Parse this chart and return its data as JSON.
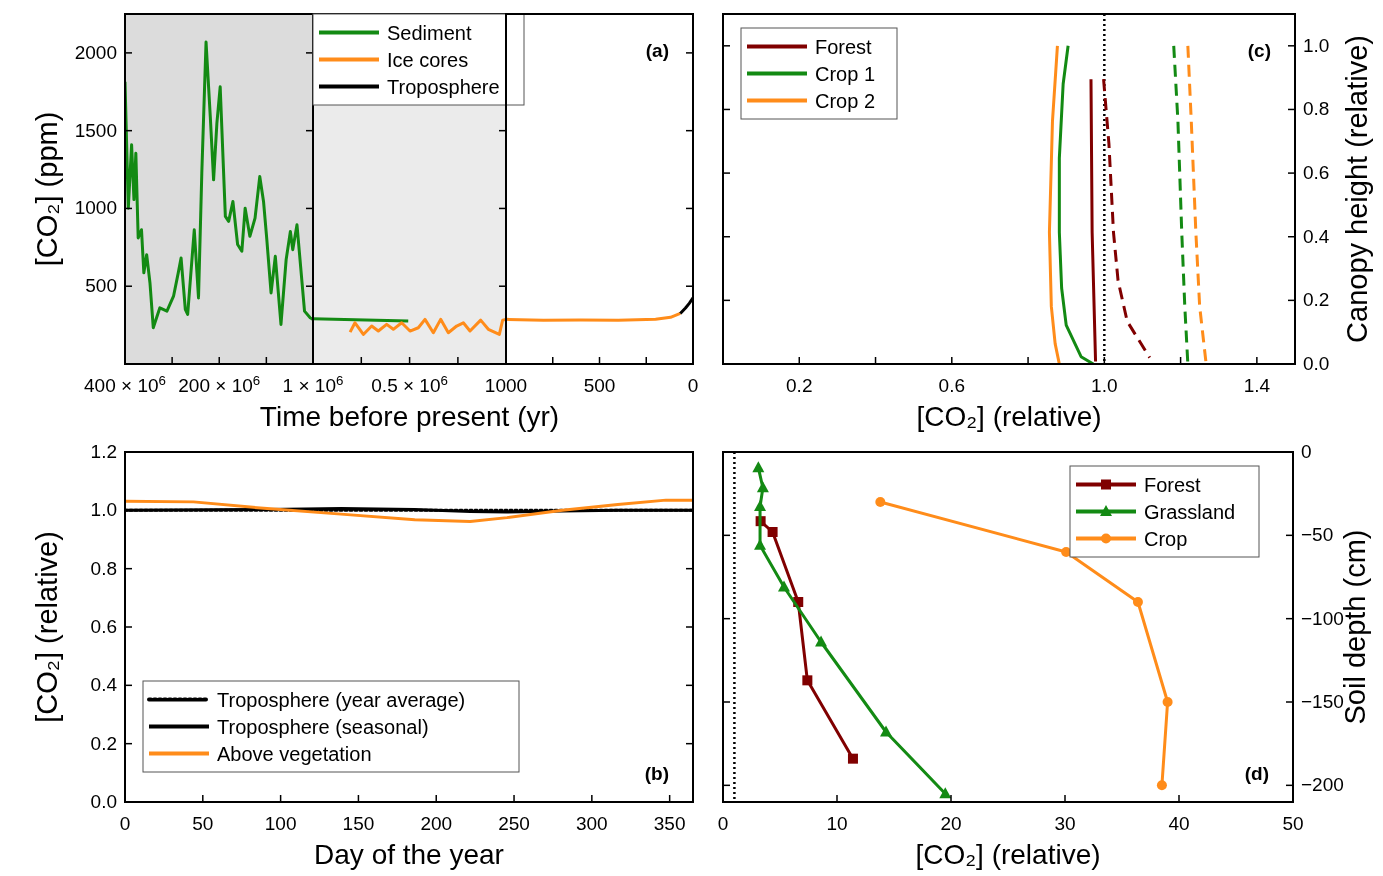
{
  "chart_data": [
    {
      "type": "line",
      "ylabel": "[CO₂] (ppm)",
      "xlim": [
        400000000,
        1000000
      ],
      "ylim": [
        0,
        2250
      ],
      "xticks": [
        {
          "value": 400000000,
          "label": "400 × 10$^{6}$"
        },
        {
          "value": 300000000,
          "label": null
        },
        {
          "value": 200000000,
          "label": "200 × 10$^{6}$"
        },
        {
          "value": 100000000,
          "label": null
        }
      ],
      "yticks": [
        500,
        1000,
        1500,
        2000
      ],
      "bands": [
        {
          "axis": "x",
          "from": 400000000,
          "to": 1000000,
          "color": "#dcdcdc"
        }
      ],
      "series": [
        {
          "name": "Sediment",
          "color": "#138a13",
          "x": [
            400000000,
            393000000,
            386000000,
            381000000,
            377000000,
            372000000,
            365000000,
            360000000,
            354000000,
            347000000,
            340000000,
            326000000,
            311000000,
            297000000,
            287000000,
            281000000,
            272000000,
            267000000,
            253000000,
            244000000,
            237000000,
            228000000,
            219000000,
            212000000,
            205000000,
            198000000,
            187000000,
            180000000,
            171000000,
            161000000,
            152000000,
            145000000,
            135000000,
            124000000,
            114000000,
            106000000,
            99000000,
            90000000,
            81000000,
            69000000,
            58000000,
            49000000,
            44000000,
            35000000,
            19000000,
            7000000,
            1000000
          ],
          "values": [
            1815,
            1002,
            1409,
            1057,
            1355,
            810,
            863,
            586,
            703,
            521,
            233,
            361,
            340,
            436,
            586,
            682,
            351,
            319,
            863,
            425,
            1226,
            2070,
            1590,
            1184,
            1547,
            1782,
            949,
            917,
            1045,
            768,
            725,
            1002,
            821,
            938,
            1205,
            1045,
            799,
            457,
            692,
            254,
            671,
            852,
            735,
            895,
            340,
            297,
            287
          ]
        }
      ]
    },
    {
      "type": "line",
      "xlabel": "Time before present (yr)",
      "xlim": [
        1000000,
        1000
      ],
      "ylim": [
        0,
        2250
      ],
      "tick_labels": "x",
      "legend": "top left",
      "xticks": [
        {
          "value": 1000000,
          "label": "1 × 10$^{6}$"
        },
        {
          "value": 750000,
          "label": null
        },
        {
          "value": 500000,
          "label": "0.5 × 10$^{6}$"
        },
        {
          "value": 250000,
          "label": null
        }
      ],
      "yticks": [
        500,
        1000,
        1500,
        2000
      ],
      "bands": [
        {
          "axis": "x",
          "from": 1000000,
          "to": 1000,
          "color": "#ebebeb"
        }
      ],
      "series": [
        {
          "color": "#138a13",
          "x": [
            1000000,
            507000
          ],
          "values": [
            291,
            276
          ]
        },
        {
          "name": "Ice cores",
          "color": "#ff8c1a",
          "x": [
            808000,
            782600,
            739500,
            696300,
            661800,
            618700,
            584200,
            541000,
            497900,
            454800,
            420300,
            377100,
            339200,
            299500,
            256400,
            221900,
            187300,
            132100,
            92400,
            35500,
            18300,
            1000
          ],
          "values": [
            205,
            265,
            190,
            244,
            212,
            255,
            223,
            265,
            212,
            233,
            287,
            201,
            287,
            201,
            244,
            265,
            212,
            282,
            223,
            190,
            282,
            287
          ]
        }
      ]
    },
    {
      "type": "line",
      "title": "(a)",
      "xlim": [
        1000,
        0
      ],
      "ylim": [
        0,
        2250
      ],
      "tick_labels": "x",
      "xticks": [
        1000,
        {
          "value": 750,
          "label": null
        },
        500,
        {
          "value": 250,
          "label": null
        },
        0
      ],
      "yticks": [
        500,
        1000,
        1500,
        2000
      ],
      "series": [
        {
          "color": "#ff8c1a",
          "x": [
            1000,
            800,
            600,
            400,
            200,
            120,
            68
          ],
          "values": [
            287,
            282,
            283,
            282,
            287,
            300,
            325
          ]
        },
        {
          "name": "Troposphere",
          "color": "#000000",
          "x": [
            68,
            40,
            20,
            0
          ],
          "values": [
            325,
            360,
            390,
            425
          ]
        }
      ]
    },
    {
      "type": "line",
      "title": "(c)",
      "xlabel": "[CO₂] (relative)",
      "y2label": "Canopy height (relative)",
      "legend": "top left",
      "xlim": [
        0,
        1.5
      ],
      "y2lim": [
        0,
        1.1
      ],
      "xticks": [
        0.2,
        {
          "value": 0.4,
          "label": null
        },
        0.6,
        {
          "value": 0.8,
          "label": null
        },
        {
          "value": 1,
          "label": "1.0"
        },
        {
          "value": 1.2,
          "label": null
        },
        1.4
      ],
      "y2ticks": [
        {
          "value": 0,
          "label": "0.0"
        },
        0.2,
        0.4,
        0.6,
        0.8,
        {
          "value": 1,
          "label": "1.0"
        }
      ],
      "ref_lines": [
        {
          "axis": "x",
          "value": 1,
          "color": "#000000",
          "line_style": "dotted"
        }
      ],
      "series": [
        {
          "name": "Forest",
          "color": "#800000",
          "axis": "y2",
          "x": [
            0.965,
            0.968,
            0.977
          ],
          "values": [
            0.895,
            0.414,
            0.008
          ]
        },
        {
          "name": "Crop 1",
          "color": "#138a13",
          "axis": "y2",
          "x": [
            0.905,
            0.892,
            0.882,
            0.882,
            0.888,
            0.9,
            0.939,
            0.971
          ],
          "values": [
            1,
            0.88,
            0.647,
            0.414,
            0.239,
            0.122,
            0.023,
            0
          ]
        },
        {
          "name": "Crop 2",
          "color": "#ff8c1a",
          "axis": "y2",
          "x": [
            0.877,
            0.864,
            0.856,
            0.861,
            0.871,
            0.882
          ],
          "values": [
            1,
            0.763,
            0.414,
            0.181,
            0.064,
            0
          ]
        },
        {
          "color": "#800000",
          "axis": "y2",
          "line_style": "dashed",
          "x": [
            0.998,
            1.012,
            1.024,
            1.036,
            1.06,
            1.119
          ],
          "values": [
            0.895,
            0.693,
            0.414,
            0.262,
            0.134,
            0.02
          ]
        },
        {
          "color": "#138a13",
          "axis": "y2",
          "line_style": "dashed",
          "x": [
            1.182,
            1.193,
            1.203,
            1.211,
            1.219
          ],
          "values": [
            1,
            0.763,
            0.414,
            0.181,
            0
          ]
        },
        {
          "color": "#ff8c1a",
          "axis": "y2",
          "line_style": "dashed",
          "x": [
            1.219,
            1.228,
            1.24,
            1.25,
            1.267
          ],
          "values": [
            1,
            0.763,
            0.414,
            0.181,
            0
          ]
        }
      ]
    },
    {
      "type": "line",
      "title": "(b)",
      "xlabel": "Day of the year",
      "ylabel": "[CO₂] (relative)",
      "legend": "bottom left",
      "xlim": [
        0,
        365
      ],
      "ylim": [
        0,
        1.2
      ],
      "xticks": [
        0,
        50,
        100,
        150,
        200,
        250,
        300,
        350
      ],
      "yticks": [
        {
          "value": 0,
          "label": "0.0"
        },
        0.2,
        0.4,
        0.6,
        0.8,
        {
          "value": 1,
          "label": "1.0"
        },
        1.2
      ],
      "series": [
        {
          "name": "Troposphere (year average)",
          "color": "#000000",
          "line_style": "dotted",
          "x": [
            0,
            365
          ],
          "values": [
            1,
            1
          ]
        },
        {
          "name": "Troposphere (seasonal)",
          "color": "#000000",
          "x": [
            0,
            91,
            139,
            186,
            222,
            245,
            281,
            317,
            365
          ],
          "values": [
            1,
            1.003,
            1.006,
            1.003,
            0.996,
            0.994,
            0.998,
            1,
            1
          ]
        },
        {
          "name": "Above vegetation",
          "color": "#ff8c1a",
          "x": [
            0,
            44,
            91.3,
            138.8,
            186.2,
            221.8,
            245.5,
            281.1,
            316.7,
            347.6,
            364.6
          ],
          "values": [
            1.031,
            1.029,
            1.006,
            0.987,
            0.968,
            0.962,
            0.975,
            1,
            1.02,
            1.035,
            1.035
          ]
        }
      ]
    },
    {
      "type": "line",
      "title": "(d)",
      "xlabel": "[CO₂] (relative)",
      "y2label": "Soil depth (cm)",
      "legend": "top right",
      "xlim": [
        0,
        50
      ],
      "y2lim": [
        -210,
        0
      ],
      "xticks": [
        0,
        10,
        20,
        30,
        40,
        50
      ],
      "y2ticks": [
        0,
        {
          "value": -50,
          "label": "−50"
        },
        {
          "value": -100,
          "label": "−100"
        },
        {
          "value": -150,
          "label": "−150"
        },
        {
          "value": -200,
          "label": "−200"
        }
      ],
      "ref_lines": [
        {
          "axis": "x",
          "value": 1,
          "color": "#000000",
          "line_style": "dotted"
        }
      ],
      "series": [
        {
          "name": "Forest",
          "color": "#800000",
          "axis": "y2",
          "marker": "square",
          "x": [
            3.3,
            4.35,
            6.6,
            7.4,
            11.4
          ],
          "values": [
            -41.5,
            -48,
            -90,
            -137,
            -184
          ]
        },
        {
          "name": "Grassland",
          "color": "#138a13",
          "axis": "y2",
          "marker": "triangle",
          "x": [
            3.1,
            3.5,
            3.25,
            3.25,
            5.35,
            8.6,
            14.3,
            19.5
          ],
          "values": [
            -9.4,
            -21.5,
            -32.7,
            -56,
            -81,
            -114,
            -168,
            -205
          ]
        },
        {
          "name": "Crop",
          "color": "#ff8c1a",
          "axis": "y2",
          "marker": "circle",
          "x": [
            13.8,
            30.1,
            36.4,
            39,
            38.5
          ],
          "values": [
            -30,
            -60,
            -90,
            -150,
            -200
          ]
        }
      ]
    }
  ]
}
